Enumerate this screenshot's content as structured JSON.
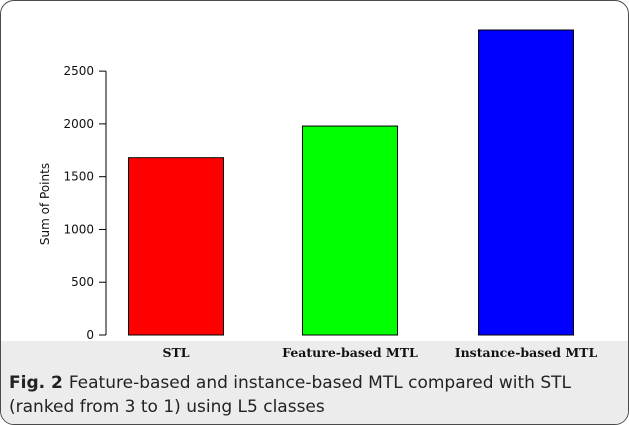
{
  "figure": {
    "number": "Fig. 2",
    "caption": "Feature-based and instance-based MTL compared with STL (ranked from 3 to 1) using L5 classes"
  },
  "chart_data": {
    "type": "bar",
    "categories": [
      "STL",
      "Feature-based MTL",
      "Instance-based MTL"
    ],
    "values": [
      1680,
      1980,
      2890
    ],
    "colors": [
      "#ff0000",
      "#00ff00",
      "#0000ff"
    ],
    "title": "",
    "xlabel": "",
    "ylabel": "Sum of Points",
    "ylim": [
      0,
      2890
    ],
    "yticks": [
      0,
      500,
      1000,
      1500,
      2000,
      2500
    ],
    "grid": false
  }
}
